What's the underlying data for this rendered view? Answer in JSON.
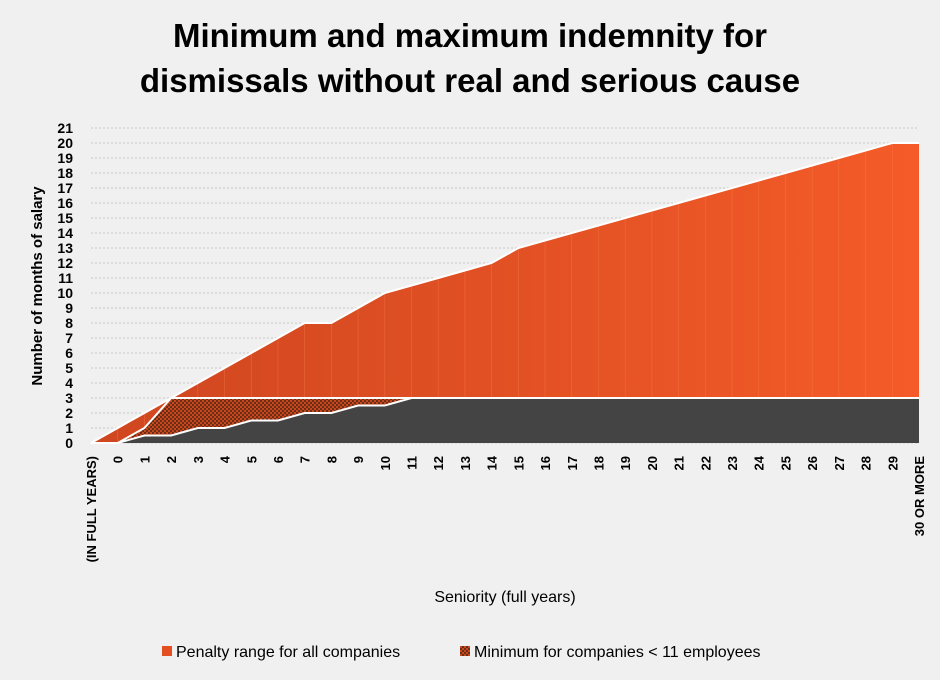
{
  "chart_data": {
    "type": "area",
    "title_lines": [
      "Minimum and maximum indemnity for",
      "dismissals without real and serious cause"
    ],
    "xlabel": "Seniority (full years)",
    "ylabel": "Number of months of salary",
    "categories": [
      "(IN FULL YEARS)",
      "0",
      "1",
      "2",
      "3",
      "4",
      "5",
      "6",
      "7",
      "8",
      "9",
      "10",
      "11",
      "12",
      "13",
      "14",
      "15",
      "16",
      "17",
      "18",
      "19",
      "20",
      "21",
      "22",
      "23",
      "24",
      "25",
      "26",
      "27",
      "28",
      "29",
      "30 OR MORE"
    ],
    "ylim": [
      0,
      21
    ],
    "yticks": [
      0,
      1,
      2,
      3,
      4,
      5,
      6,
      7,
      8,
      9,
      10,
      11,
      12,
      13,
      14,
      15,
      16,
      17,
      18,
      19,
      20,
      21
    ],
    "grid": true,
    "legend_position": "bottom",
    "series": [
      {
        "name": "Penalty range for all companies",
        "min": [
          0,
          0,
          1,
          3,
          3,
          3,
          3,
          3,
          3,
          3,
          3,
          3,
          3,
          3,
          3,
          3,
          3,
          3,
          3,
          3,
          3,
          3,
          3,
          3,
          3,
          3,
          3,
          3,
          3,
          3,
          3,
          3
        ],
        "max": [
          0,
          1,
          2,
          3,
          4,
          5,
          6,
          7,
          8,
          8,
          9,
          10,
          10.5,
          11,
          11.5,
          12,
          13,
          13.5,
          14,
          14.5,
          15,
          15.5,
          16,
          16.5,
          17,
          17.5,
          18,
          18.5,
          19,
          19.5,
          20,
          20
        ],
        "color": "#d4491f",
        "color_light": "#f05a28"
      },
      {
        "name": "Minimum for companies < 11 employees",
        "values": [
          0,
          0,
          0.5,
          0.5,
          1,
          1,
          1.5,
          1.5,
          2,
          2,
          2.5,
          2.5,
          3,
          3,
          3,
          3,
          3,
          3,
          3,
          3,
          3,
          3,
          3,
          3,
          3,
          3,
          3,
          3,
          3,
          3,
          3,
          3
        ],
        "color": "#444444"
      }
    ]
  }
}
